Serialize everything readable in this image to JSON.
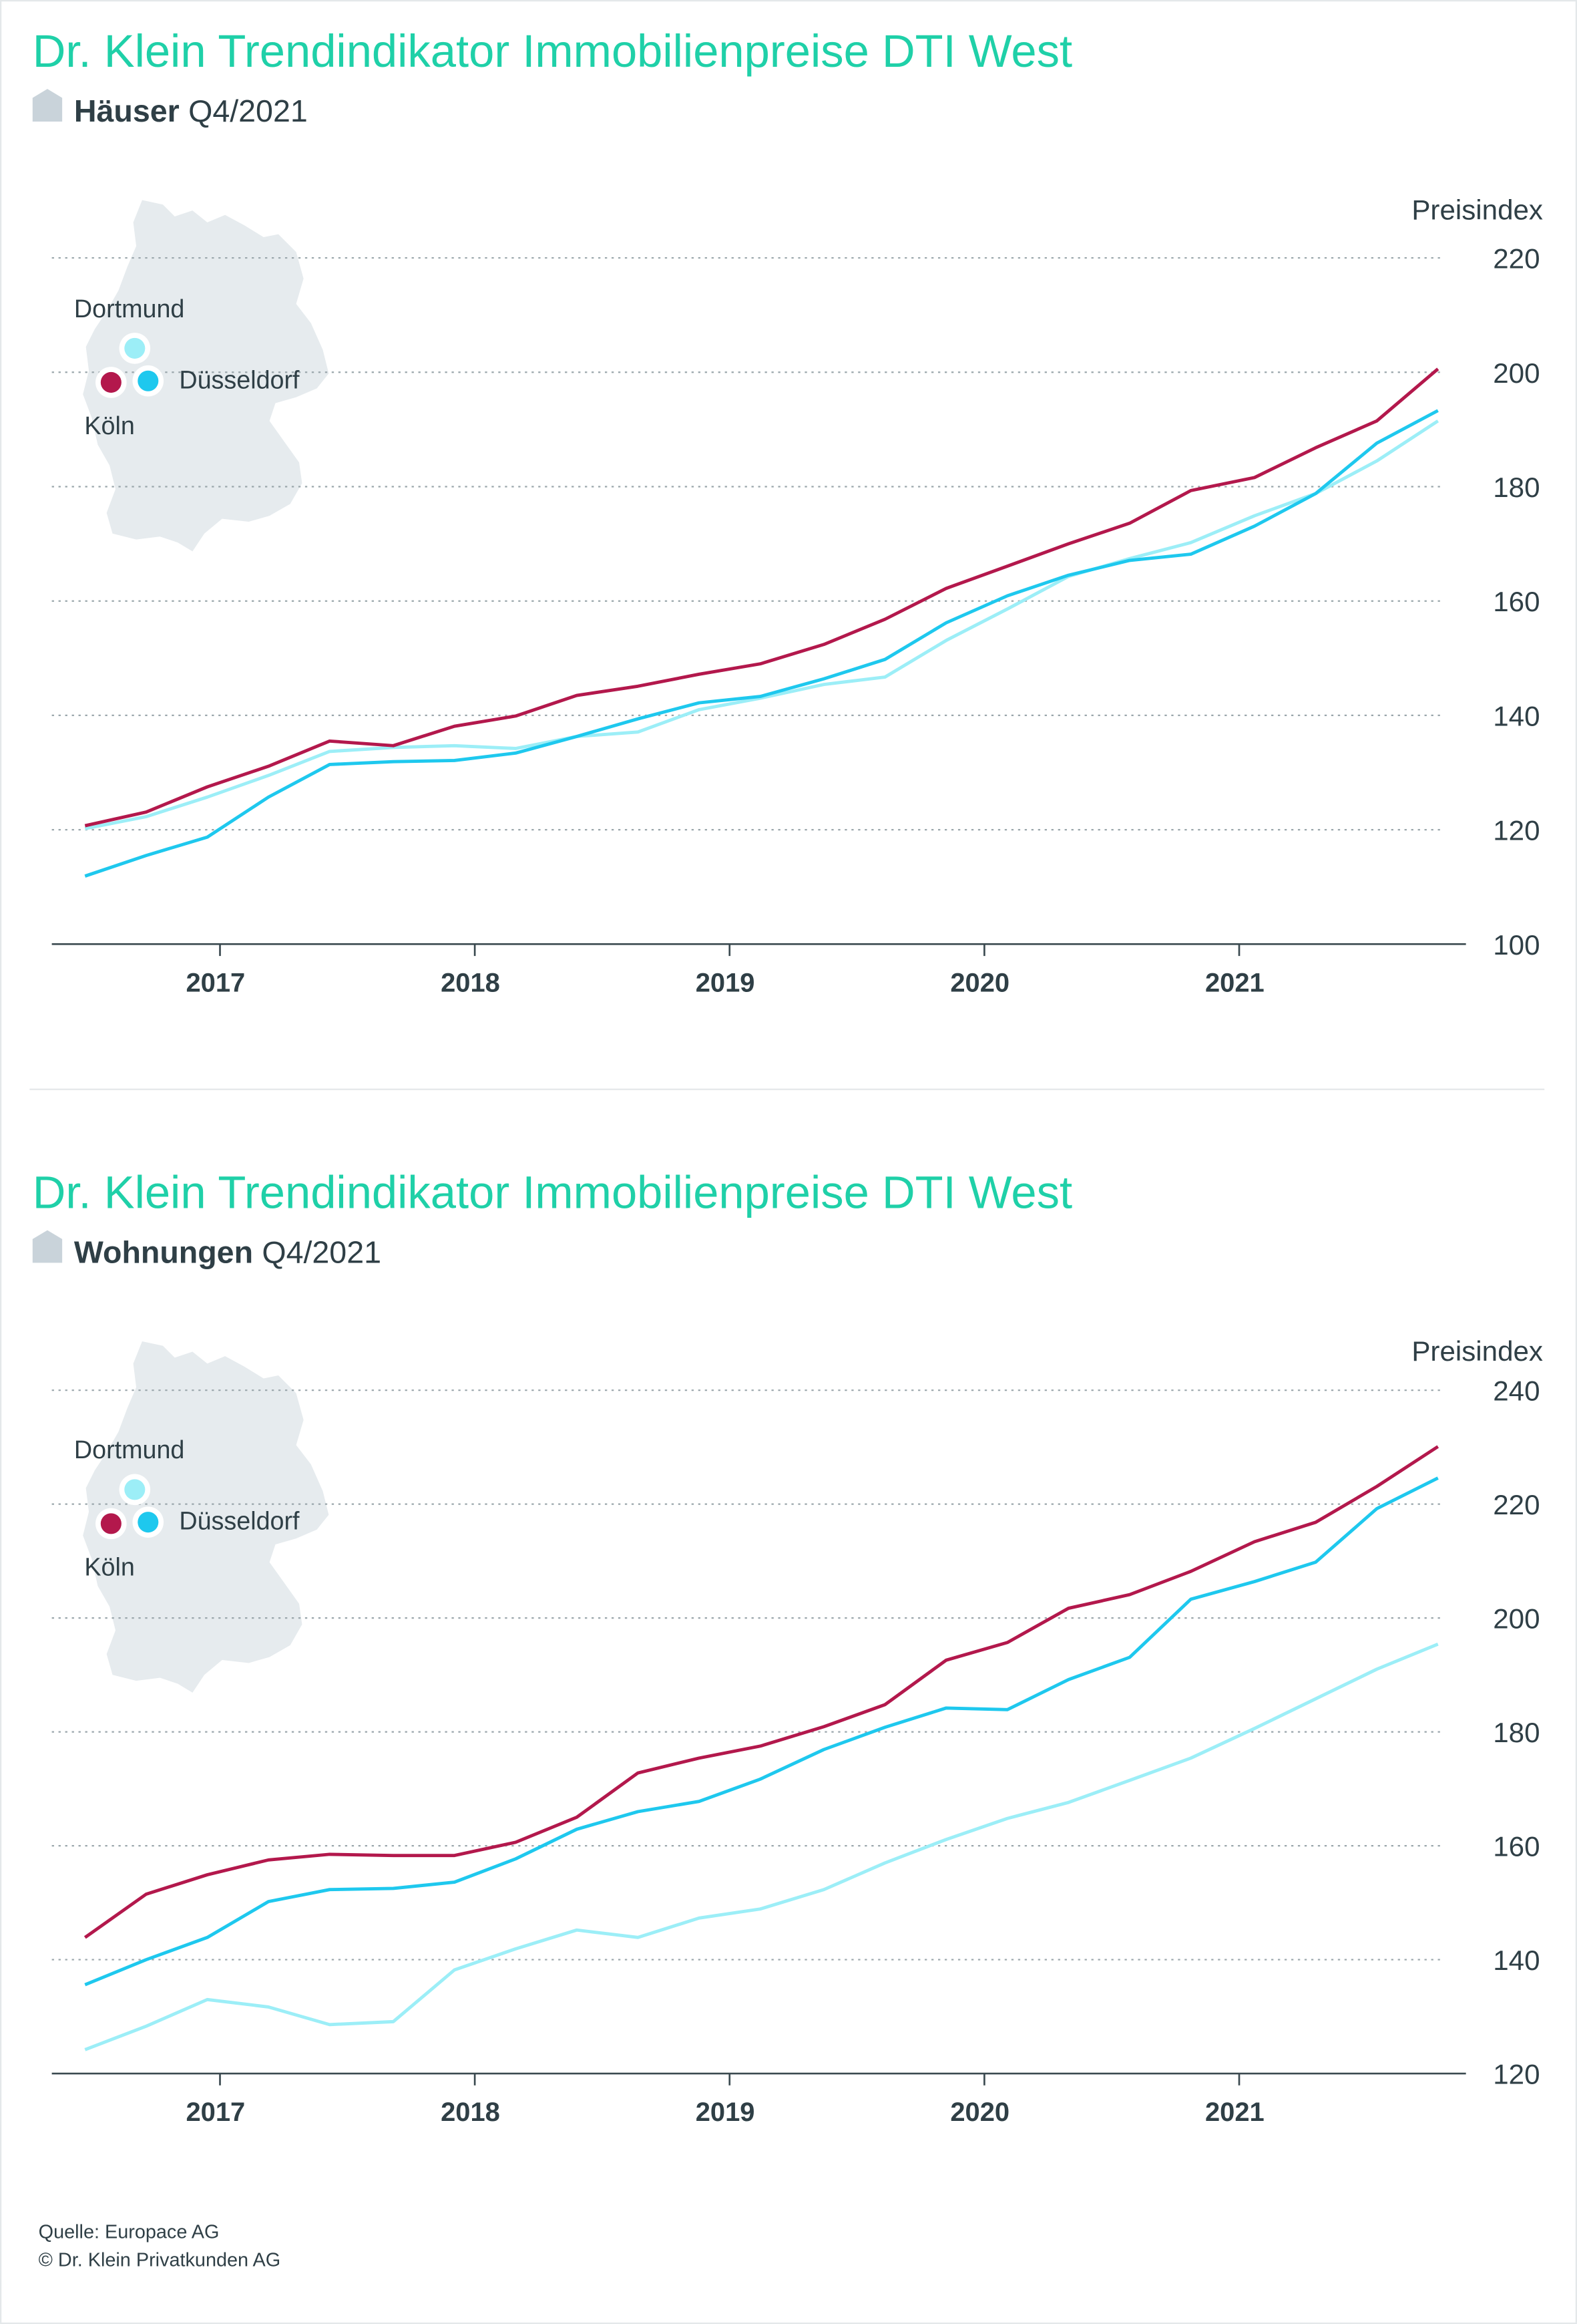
{
  "chart_data": [
    {
      "type": "line",
      "title": "Dr. Klein Trendindikator Immobilienpreise DTI West",
      "subtitle_bold": "Häuser",
      "subtitle": "Q4/2021",
      "y_label": "Preisindex",
      "x": [
        2016.47,
        2016.71,
        2016.95,
        2017.19,
        2017.43,
        2017.68,
        2017.92,
        2018.16,
        2018.4,
        2018.64,
        2018.88,
        2019.12,
        2019.37,
        2019.61,
        2019.85,
        2020.09,
        2020.33,
        2020.57,
        2020.81,
        2021.06,
        2021.3,
        2021.54,
        2021.78
      ],
      "xlim": [
        2016.34,
        2021.89
      ],
      "xticks": [
        2017,
        2018,
        2019,
        2020,
        2021
      ],
      "ylim": [
        100,
        220
      ],
      "yticks": [
        100,
        120,
        140,
        160,
        180,
        200,
        220
      ],
      "grid": true,
      "series": [
        {
          "name": "Dortmund",
          "color": "#9ceef7",
          "values": [
            120.2,
            122.3,
            125.7,
            129.5,
            133.7,
            134.4,
            134.7,
            134.2,
            136.3,
            137.1,
            141.0,
            143.0,
            145.4,
            146.7,
            153.1,
            158.6,
            164.3,
            167.4,
            170.2,
            174.9,
            178.8,
            184.5,
            191.5
          ]
        },
        {
          "name": "Düsseldorf",
          "color": "#1ec8ee",
          "values": [
            111.9,
            115.5,
            118.7,
            125.7,
            131.4,
            131.9,
            132.1,
            133.4,
            136.3,
            139.4,
            142.2,
            143.3,
            146.4,
            149.8,
            156.2,
            160.9,
            164.5,
            167.1,
            168.2,
            173.1,
            178.8,
            187.6,
            193.3
          ]
        },
        {
          "name": "Köln",
          "color": "#b3184c",
          "values": [
            120.7,
            123.1,
            127.5,
            131.1,
            135.5,
            134.7,
            138.1,
            139.9,
            143.5,
            145.1,
            147.2,
            149.0,
            152.4,
            156.8,
            162.2,
            166.1,
            170.0,
            173.6,
            179.3,
            181.6,
            186.8,
            191.5,
            200.6
          ]
        }
      ]
    },
    {
      "type": "line",
      "title": "Dr. Klein Trendindikator Immobilienpreise DTI West",
      "subtitle_bold": "Wohnungen",
      "subtitle": "Q4/2021",
      "y_label": "Preisindex",
      "x": [
        2016.47,
        2016.71,
        2016.95,
        2017.19,
        2017.43,
        2017.68,
        2017.92,
        2018.16,
        2018.4,
        2018.64,
        2018.88,
        2019.12,
        2019.37,
        2019.61,
        2019.85,
        2020.09,
        2020.33,
        2020.57,
        2020.81,
        2021.06,
        2021.3,
        2021.54,
        2021.78
      ],
      "xlim": [
        2016.34,
        2021.89
      ],
      "xticks": [
        2017,
        2018,
        2019,
        2020,
        2021
      ],
      "ylim": [
        120,
        240
      ],
      "yticks": [
        120,
        140,
        160,
        180,
        200,
        220,
        240
      ],
      "grid": true,
      "series": [
        {
          "name": "Dortmund",
          "color": "#9ceef7",
          "values": [
            124.2,
            128.3,
            133.0,
            131.7,
            128.6,
            129.1,
            138.2,
            141.9,
            145.2,
            143.9,
            147.3,
            148.9,
            152.3,
            157.0,
            161.1,
            164.8,
            167.6,
            171.5,
            175.4,
            180.6,
            185.8,
            191.0,
            195.4
          ]
        },
        {
          "name": "Düsseldorf",
          "color": "#1ec8ee",
          "values": [
            135.6,
            140.0,
            143.9,
            150.2,
            152.3,
            152.5,
            153.6,
            157.7,
            162.9,
            166.0,
            167.8,
            171.7,
            176.9,
            180.8,
            184.2,
            183.9,
            189.2,
            193.1,
            203.3,
            206.4,
            209.8,
            219.2,
            224.6
          ]
        },
        {
          "name": "Köln",
          "color": "#b3184c",
          "values": [
            143.9,
            151.5,
            154.9,
            157.5,
            158.5,
            158.3,
            158.3,
            160.6,
            165.0,
            172.8,
            175.4,
            177.5,
            180.9,
            184.8,
            192.6,
            195.7,
            201.7,
            204.1,
            208.2,
            213.4,
            216.8,
            223.1,
            230.1
          ]
        }
      ]
    }
  ],
  "source": [
    "Quelle: Europace AG",
    "© Dr. Klein Privatkunden AG"
  ]
}
